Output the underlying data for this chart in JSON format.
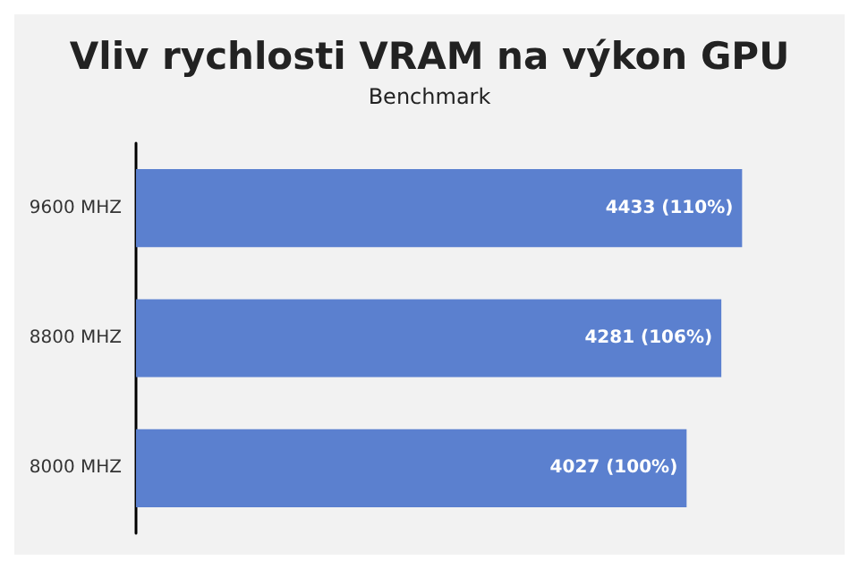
{
  "chart_data": {
    "type": "bar",
    "orientation": "horizontal",
    "title": "Vliv rychlosti VRAM na výkon GPU",
    "subtitle": "Benchmark",
    "categories": [
      "9600 MHZ",
      "8800 MHZ",
      "8000 MHZ"
    ],
    "values": [
      4433,
      4281,
      4027
    ],
    "value_labels": [
      "4433 (110%)",
      "4281 (106%)",
      "4027 (100%)"
    ],
    "color": "#5b80cf"
  }
}
